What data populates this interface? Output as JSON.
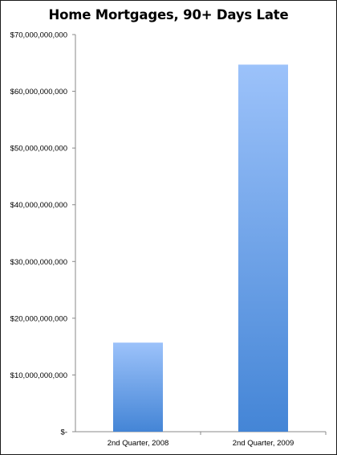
{
  "chart_data": {
    "type": "bar",
    "title": "Home Mortgages, 90+ Days Late",
    "xlabel": "",
    "ylabel": "",
    "categories": [
      "2nd Quarter, 2008",
      "2nd Quarter, 2009"
    ],
    "values": [
      15700000000,
      64700000000
    ],
    "ylim": [
      0,
      70000000000
    ],
    "yticks": [
      0,
      10000000000,
      20000000000,
      30000000000,
      40000000000,
      50000000000,
      60000000000,
      70000000000
    ],
    "ytick_labels": [
      "$-",
      "$10,000,000,000",
      "$20,000,000,000",
      "$30,000,000,000",
      "$40,000,000,000",
      "$50,000,000,000",
      "$60,000,000,000",
      "$70,000,000,000"
    ],
    "grid": false,
    "legend": "none",
    "colors": {
      "bar_top": "#9cc2fa",
      "bar_bottom": "#4485d6",
      "axis": "#888888"
    }
  }
}
